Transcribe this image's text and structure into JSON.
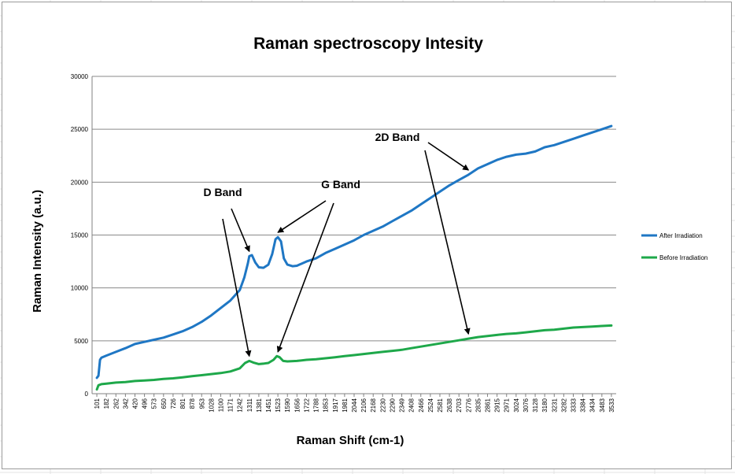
{
  "chart_data": {
    "type": "line",
    "title": "Raman spectroscopy  Intesity",
    "xlabel": "Raman Shift (cm-1)",
    "ylabel": "Raman Intensity (a.u.)",
    "ylim": [
      0,
      30000
    ],
    "yticks": [
      0,
      5000,
      10000,
      15000,
      20000,
      25000,
      30000
    ],
    "grid": true,
    "legend_position": "right",
    "x_tick_labels": [
      "101",
      "182",
      "262",
      "342",
      "420",
      "496",
      "573",
      "650",
      "726",
      "801",
      "878",
      "953",
      "1028",
      "1100",
      "1171",
      "1242",
      "1311",
      "1381",
      "1451",
      "1523",
      "1590",
      "1656",
      "1722",
      "1788",
      "1853",
      "1917",
      "1981",
      "2044",
      "2106",
      "2168",
      "2230",
      "2290",
      "2349",
      "2408",
      "2466",
      "2524",
      "2581",
      "2638",
      "2703",
      "2776",
      "2835",
      "2861",
      "2915",
      "2971",
      "3024",
      "3076",
      "3128",
      "3180",
      "3231",
      "3282",
      "3333",
      "3384",
      "3434",
      "3483",
      "3533"
    ],
    "series": [
      {
        "name": "After Irradiation",
        "color": "#1f77c4",
        "points": [
          [
            101,
            1500
          ],
          [
            115,
            1700
          ],
          [
            128,
            3200
          ],
          [
            140,
            3400
          ],
          [
            182,
            3600
          ],
          [
            262,
            3950
          ],
          [
            342,
            4300
          ],
          [
            420,
            4700
          ],
          [
            496,
            4900
          ],
          [
            573,
            5100
          ],
          [
            650,
            5300
          ],
          [
            726,
            5600
          ],
          [
            801,
            5900
          ],
          [
            878,
            6300
          ],
          [
            953,
            6800
          ],
          [
            1028,
            7400
          ],
          [
            1100,
            8100
          ],
          [
            1171,
            8800
          ],
          [
            1242,
            9800
          ],
          [
            1275,
            11000
          ],
          [
            1300,
            12300
          ],
          [
            1311,
            13000
          ],
          [
            1330,
            13100
          ],
          [
            1355,
            12400
          ],
          [
            1381,
            11950
          ],
          [
            1415,
            11900
          ],
          [
            1451,
            12200
          ],
          [
            1480,
            13200
          ],
          [
            1505,
            14600
          ],
          [
            1523,
            14800
          ],
          [
            1545,
            14400
          ],
          [
            1565,
            12800
          ],
          [
            1590,
            12200
          ],
          [
            1625,
            12050
          ],
          [
            1656,
            12100
          ],
          [
            1722,
            12500
          ],
          [
            1788,
            12800
          ],
          [
            1853,
            13300
          ],
          [
            1917,
            13700
          ],
          [
            1981,
            14100
          ],
          [
            2044,
            14500
          ],
          [
            2106,
            15000
          ],
          [
            2168,
            15400
          ],
          [
            2230,
            15800
          ],
          [
            2290,
            16300
          ],
          [
            2349,
            16800
          ],
          [
            2408,
            17300
          ],
          [
            2466,
            17900
          ],
          [
            2524,
            18500
          ],
          [
            2581,
            19100
          ],
          [
            2638,
            19700
          ],
          [
            2703,
            20200
          ],
          [
            2776,
            20700
          ],
          [
            2835,
            21300
          ],
          [
            2861,
            21700
          ],
          [
            2915,
            22100
          ],
          [
            2971,
            22400
          ],
          [
            3024,
            22600
          ],
          [
            3076,
            22700
          ],
          [
            3128,
            22900
          ],
          [
            3180,
            23300
          ],
          [
            3231,
            23500
          ],
          [
            3282,
            23800
          ],
          [
            3333,
            24100
          ],
          [
            3384,
            24400
          ],
          [
            3434,
            24700
          ],
          [
            3483,
            25000
          ],
          [
            3533,
            25300
          ]
        ]
      },
      {
        "name": "Before Irradiation",
        "color": "#1ea84a",
        "points": [
          [
            101,
            400
          ],
          [
            115,
            800
          ],
          [
            140,
            900
          ],
          [
            182,
            950
          ],
          [
            262,
            1050
          ],
          [
            342,
            1100
          ],
          [
            420,
            1200
          ],
          [
            496,
            1250
          ],
          [
            573,
            1300
          ],
          [
            650,
            1400
          ],
          [
            726,
            1450
          ],
          [
            801,
            1550
          ],
          [
            878,
            1650
          ],
          [
            953,
            1750
          ],
          [
            1028,
            1850
          ],
          [
            1100,
            1950
          ],
          [
            1171,
            2100
          ],
          [
            1242,
            2400
          ],
          [
            1280,
            2900
          ],
          [
            1311,
            3100
          ],
          [
            1340,
            2950
          ],
          [
            1381,
            2800
          ],
          [
            1420,
            2850
          ],
          [
            1451,
            2900
          ],
          [
            1490,
            3200
          ],
          [
            1515,
            3550
          ],
          [
            1535,
            3450
          ],
          [
            1560,
            3100
          ],
          [
            1590,
            3050
          ],
          [
            1656,
            3100
          ],
          [
            1722,
            3200
          ],
          [
            1788,
            3250
          ],
          [
            1853,
            3350
          ],
          [
            1917,
            3450
          ],
          [
            1981,
            3550
          ],
          [
            2044,
            3650
          ],
          [
            2106,
            3750
          ],
          [
            2168,
            3850
          ],
          [
            2230,
            3950
          ],
          [
            2290,
            4050
          ],
          [
            2349,
            4150
          ],
          [
            2408,
            4300
          ],
          [
            2466,
            4450
          ],
          [
            2524,
            4600
          ],
          [
            2581,
            4750
          ],
          [
            2638,
            4900
          ],
          [
            2703,
            5050
          ],
          [
            2776,
            5200
          ],
          [
            2835,
            5350
          ],
          [
            2861,
            5450
          ],
          [
            2915,
            5550
          ],
          [
            2971,
            5650
          ],
          [
            3024,
            5700
          ],
          [
            3076,
            5800
          ],
          [
            3128,
            5900
          ],
          [
            3180,
            6000
          ],
          [
            3231,
            6050
          ],
          [
            3282,
            6150
          ],
          [
            3333,
            6250
          ],
          [
            3384,
            6300
          ],
          [
            3434,
            6350
          ],
          [
            3483,
            6400
          ],
          [
            3533,
            6450
          ]
        ]
      }
    ],
    "annotations": [
      {
        "text": "D Band",
        "arrows_to": [
          [
            "After Irradiation",
            1311,
            13000
          ],
          [
            "Before Irradiation",
            1311,
            3100
          ]
        ]
      },
      {
        "text": "G Band",
        "arrows_to": [
          [
            "After Irradiation",
            1523,
            14800
          ],
          [
            "Before Irradiation",
            1523,
            3500
          ]
        ]
      },
      {
        "text": "2D Band",
        "arrows_to": [
          [
            "After Irradiation",
            2776,
            20700
          ],
          [
            "Before Irradiation",
            2776,
            5200
          ]
        ]
      }
    ]
  }
}
